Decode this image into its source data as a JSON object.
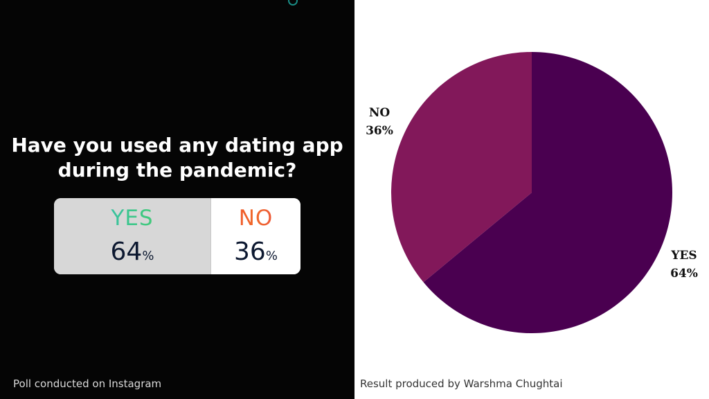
{
  "left": {
    "question_line1": "Have you used any dating app",
    "question_line2": "during the pandemic?",
    "poll": {
      "yes_label": "YES",
      "yes_value": "64",
      "no_label": "NO",
      "no_value": "36",
      "percent_sign": "%"
    },
    "caption": "Poll conducted on Instagram"
  },
  "right": {
    "caption": "Result produced by Warshma Chughtai"
  },
  "chart_data": {
    "type": "pie",
    "slices": [
      {
        "label": "YES",
        "value": 64,
        "value_label": "64%",
        "color": "#4a0050"
      },
      {
        "label": "NO",
        "value": 36,
        "value_label": "36%",
        "color": "#82185a"
      }
    ],
    "start": "top, clockwise",
    "labels_placement": "outside"
  }
}
